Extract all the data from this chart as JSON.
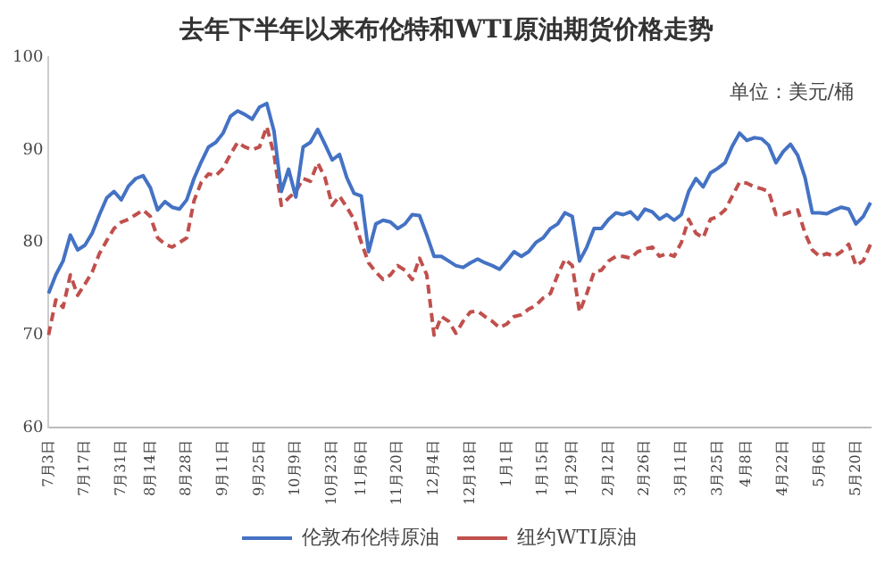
{
  "chart_data": {
    "type": "line",
    "title": "去年下半年以来布伦特和WTI原油期货价格走势",
    "annotations": [
      "单位：美元/桶"
    ],
    "categories": [
      "7月3日",
      null,
      null,
      null,
      null,
      "7月17日",
      null,
      null,
      null,
      null,
      "7月31日",
      null,
      null,
      null,
      "8月14日",
      null,
      null,
      null,
      null,
      "8月28日",
      null,
      null,
      null,
      null,
      "9月11日",
      null,
      null,
      null,
      null,
      "9月25日",
      null,
      null,
      null,
      null,
      "10月9日",
      null,
      null,
      null,
      null,
      "10月23日",
      null,
      null,
      null,
      "11月6日",
      null,
      null,
      null,
      null,
      "11月20日",
      null,
      null,
      null,
      null,
      "12月4日",
      null,
      null,
      null,
      null,
      "12月18日",
      null,
      null,
      null,
      null,
      "1月1日",
      null,
      null,
      null,
      null,
      "1月15日",
      null,
      null,
      null,
      "1月29日",
      null,
      null,
      null,
      null,
      "2月12日",
      null,
      null,
      null,
      null,
      "2月26日",
      null,
      null,
      null,
      null,
      "3月11日",
      null,
      null,
      null,
      null,
      "3月25日",
      null,
      null,
      null,
      "4月8日",
      null,
      null,
      null,
      null,
      "4月22日",
      null,
      null,
      null,
      null,
      "5月6日",
      null,
      null,
      null,
      null,
      "5月20日",
      null,
      null
    ],
    "series": [
      {
        "name": "伦敦布伦特原油",
        "color": "#4472c4",
        "line_style": "solid",
        "values": [
          74.5,
          76.5,
          78.0,
          80.8,
          79.2,
          79.7,
          81.0,
          83.0,
          84.8,
          85.5,
          84.6,
          86.1,
          86.9,
          87.2,
          85.9,
          83.5,
          84.4,
          83.8,
          83.6,
          84.6,
          86.9,
          88.7,
          90.3,
          90.8,
          91.8,
          93.6,
          94.2,
          93.8,
          93.3,
          94.6,
          95.0,
          92.0,
          85.5,
          87.9,
          84.9,
          90.3,
          90.8,
          92.2,
          90.6,
          88.9,
          89.5,
          87.0,
          85.3,
          85.0,
          79.0,
          82.0,
          82.4,
          82.2,
          81.5,
          82.0,
          83.0,
          82.9,
          80.8,
          78.5,
          78.5,
          78.0,
          77.5,
          77.3,
          77.8,
          78.2,
          77.8,
          77.5,
          77.1,
          78.0,
          79.0,
          78.5,
          79.0,
          80.0,
          80.5,
          81.5,
          82.0,
          83.2,
          82.8,
          78.0,
          79.5,
          81.5,
          81.5,
          82.5,
          83.2,
          83.0,
          83.3,
          82.5,
          83.6,
          83.3,
          82.5,
          83.0,
          82.4,
          83.0,
          85.5,
          86.9,
          86.0,
          87.5,
          88.0,
          88.6,
          90.4,
          91.8,
          91.0,
          91.3,
          91.2,
          90.5,
          88.6,
          89.8,
          90.6,
          89.4,
          87.0,
          83.2,
          83.2,
          83.1,
          83.5,
          83.8,
          83.6,
          82.0,
          82.8,
          84.3
        ]
      },
      {
        "name": "纽约WTI原油",
        "color": "#c0504d",
        "line_style": "dashed",
        "values": [
          70.0,
          73.8,
          73.0,
          76.5,
          74.3,
          75.5,
          76.8,
          78.8,
          80.2,
          81.5,
          82.2,
          82.5,
          83.0,
          83.5,
          82.8,
          80.5,
          79.8,
          79.5,
          80.0,
          80.5,
          84.5,
          86.5,
          87.4,
          87.2,
          88.0,
          89.5,
          90.8,
          90.3,
          90.0,
          90.3,
          92.5,
          89.5,
          84.0,
          84.8,
          85.5,
          86.9,
          86.6,
          88.6,
          87.0,
          84.0,
          85.0,
          83.8,
          82.5,
          80.0,
          77.8,
          76.8,
          76.0,
          76.5,
          77.5,
          77.0,
          76.0,
          78.3,
          76.5,
          70.0,
          72.0,
          71.5,
          70.2,
          71.5,
          72.5,
          72.6,
          72.0,
          71.5,
          70.8,
          71.2,
          72.0,
          72.2,
          72.8,
          73.2,
          74.0,
          74.5,
          76.5,
          78.2,
          77.5,
          72.5,
          74.5,
          76.8,
          77.0,
          78.0,
          78.5,
          78.5,
          78.3,
          79.0,
          79.3,
          79.5,
          78.5,
          78.8,
          78.5,
          80.0,
          82.5,
          81.0,
          80.5,
          82.5,
          82.8,
          83.5,
          85.0,
          86.5,
          86.4,
          86.0,
          85.8,
          85.5,
          83.0,
          83.0,
          83.3,
          83.5,
          81.0,
          79.2,
          78.5,
          78.8,
          78.5,
          79.0,
          79.8,
          77.5,
          78.0,
          79.8
        ]
      }
    ],
    "ylim": [
      60,
      100
    ],
    "yticks": [
      60,
      70,
      80,
      90,
      100
    ],
    "grid": false,
    "legend": "bottom",
    "marker": "none"
  }
}
